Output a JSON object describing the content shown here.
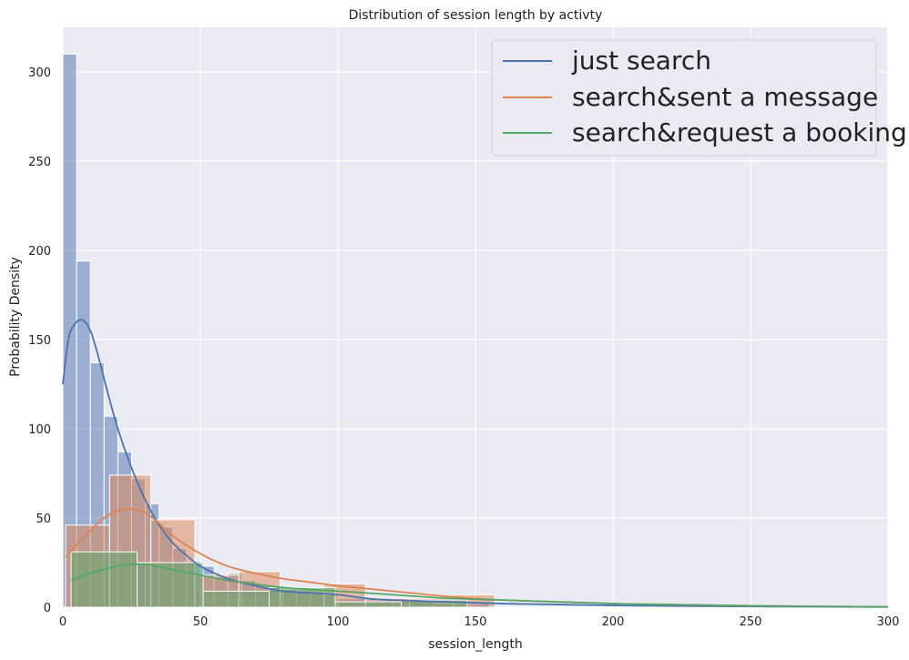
{
  "chart_data": {
    "type": "histogram",
    "title": "Distribution of session length by activty",
    "xlabel": "session_length",
    "ylabel": "Probability Density",
    "xlim": [
      0,
      300
    ],
    "ylim": [
      0,
      325
    ],
    "xticks": [
      0,
      50,
      100,
      150,
      200,
      250,
      300
    ],
    "yticks": [
      0,
      50,
      100,
      150,
      200,
      250,
      300
    ],
    "grid": true,
    "legend_position": "top-right",
    "series": [
      {
        "name": "just search",
        "color": "#4c72b0",
        "bins": [
          {
            "x0": 0,
            "x1": 5,
            "value": 310
          },
          {
            "x0": 5,
            "x1": 10,
            "value": 194
          },
          {
            "x0": 10,
            "x1": 15,
            "value": 137
          },
          {
            "x0": 15,
            "x1": 20,
            "value": 107
          },
          {
            "x0": 20,
            "x1": 25,
            "value": 87
          },
          {
            "x0": 25,
            "x1": 30,
            "value": 72
          },
          {
            "x0": 30,
            "x1": 35,
            "value": 58
          },
          {
            "x0": 35,
            "x1": 40,
            "value": 45
          },
          {
            "x0": 40,
            "x1": 45,
            "value": 33
          },
          {
            "x0": 45,
            "x1": 50,
            "value": 26
          },
          {
            "x0": 50,
            "x1": 55,
            "value": 23
          },
          {
            "x0": 55,
            "x1": 60,
            "value": 17
          },
          {
            "x0": 60,
            "x1": 65,
            "value": 19
          },
          {
            "x0": 65,
            "x1": 70,
            "value": 15
          },
          {
            "x0": 70,
            "x1": 75,
            "value": 13
          },
          {
            "x0": 75,
            "x1": 80,
            "value": 11
          },
          {
            "x0": 80,
            "x1": 85,
            "value": 10
          },
          {
            "x0": 85,
            "x1": 90,
            "value": 9
          },
          {
            "x0": 90,
            "x1": 95,
            "value": 8
          },
          {
            "x0": 95,
            "x1": 100,
            "value": 7
          },
          {
            "x0": 100,
            "x1": 110,
            "value": 5
          },
          {
            "x0": 110,
            "x1": 120,
            "value": 4
          },
          {
            "x0": 120,
            "x1": 135,
            "value": 4
          },
          {
            "x0": 135,
            "x1": 155,
            "value": 2
          }
        ],
        "kde": [
          [
            0,
            125
          ],
          [
            2,
            150
          ],
          [
            4,
            158
          ],
          [
            7,
            161
          ],
          [
            10,
            155
          ],
          [
            13,
            140
          ],
          [
            16,
            122
          ],
          [
            20,
            100
          ],
          [
            25,
            78
          ],
          [
            30,
            60
          ],
          [
            35,
            46
          ],
          [
            40,
            36
          ],
          [
            45,
            29
          ],
          [
            50,
            23
          ],
          [
            60,
            16
          ],
          [
            70,
            12
          ],
          [
            80,
            9
          ],
          [
            90,
            8
          ],
          [
            100,
            7
          ],
          [
            110,
            5
          ],
          [
            120,
            4
          ],
          [
            140,
            3
          ],
          [
            160,
            2
          ],
          [
            180,
            1.5
          ],
          [
            200,
            1
          ],
          [
            250,
            0.4
          ],
          [
            300,
            0.1
          ]
        ]
      },
      {
        "name": "search&sent a message",
        "color": "#dd8452",
        "bins": [
          {
            "x0": 1,
            "x1": 17,
            "value": 46
          },
          {
            "x0": 17,
            "x1": 32,
            "value": 74
          },
          {
            "x0": 32,
            "x1": 48,
            "value": 49
          },
          {
            "x0": 48,
            "x1": 64,
            "value": 18
          },
          {
            "x0": 64,
            "x1": 79,
            "value": 20
          },
          {
            "x0": 79,
            "x1": 95,
            "value": 10
          },
          {
            "x0": 95,
            "x1": 110,
            "value": 13
          },
          {
            "x0": 110,
            "x1": 126,
            "value": 5
          },
          {
            "x0": 126,
            "x1": 142,
            "value": 5
          },
          {
            "x0": 142,
            "x1": 157,
            "value": 7
          }
        ],
        "kde": [
          [
            1,
            28
          ],
          [
            5,
            35
          ],
          [
            10,
            43
          ],
          [
            15,
            50
          ],
          [
            20,
            54
          ],
          [
            25,
            55
          ],
          [
            30,
            53
          ],
          [
            35,
            47
          ],
          [
            40,
            40
          ],
          [
            50,
            30
          ],
          [
            60,
            23
          ],
          [
            70,
            19
          ],
          [
            80,
            16
          ],
          [
            90,
            14
          ],
          [
            100,
            12
          ],
          [
            120,
            9
          ],
          [
            140,
            6
          ],
          [
            160,
            4
          ],
          [
            180,
            3
          ],
          [
            200,
            2
          ],
          [
            220,
            1.5
          ],
          [
            250,
            0.8
          ],
          [
            300,
            0.2
          ]
        ]
      },
      {
        "name": "search&request a booking",
        "color": "#55a868",
        "bins": [
          {
            "x0": 3,
            "x1": 27,
            "value": 31
          },
          {
            "x0": 27,
            "x1": 51,
            "value": 25
          },
          {
            "x0": 51,
            "x1": 75,
            "value": 9
          },
          {
            "x0": 75,
            "x1": 99,
            "value": 11
          },
          {
            "x0": 99,
            "x1": 123,
            "value": 3
          },
          {
            "x0": 123,
            "x1": 147,
            "value": 4
          }
        ],
        "kde": [
          [
            3,
            15
          ],
          [
            10,
            19
          ],
          [
            20,
            23
          ],
          [
            30,
            24
          ],
          [
            40,
            21
          ],
          [
            50,
            18
          ],
          [
            60,
            15
          ],
          [
            70,
            13
          ],
          [
            80,
            11
          ],
          [
            100,
            9
          ],
          [
            120,
            7
          ],
          [
            140,
            5
          ],
          [
            160,
            4
          ],
          [
            180,
            3
          ],
          [
            200,
            2
          ],
          [
            220,
            1.5
          ],
          [
            250,
            0.8
          ],
          [
            300,
            0.2
          ]
        ]
      }
    ]
  }
}
